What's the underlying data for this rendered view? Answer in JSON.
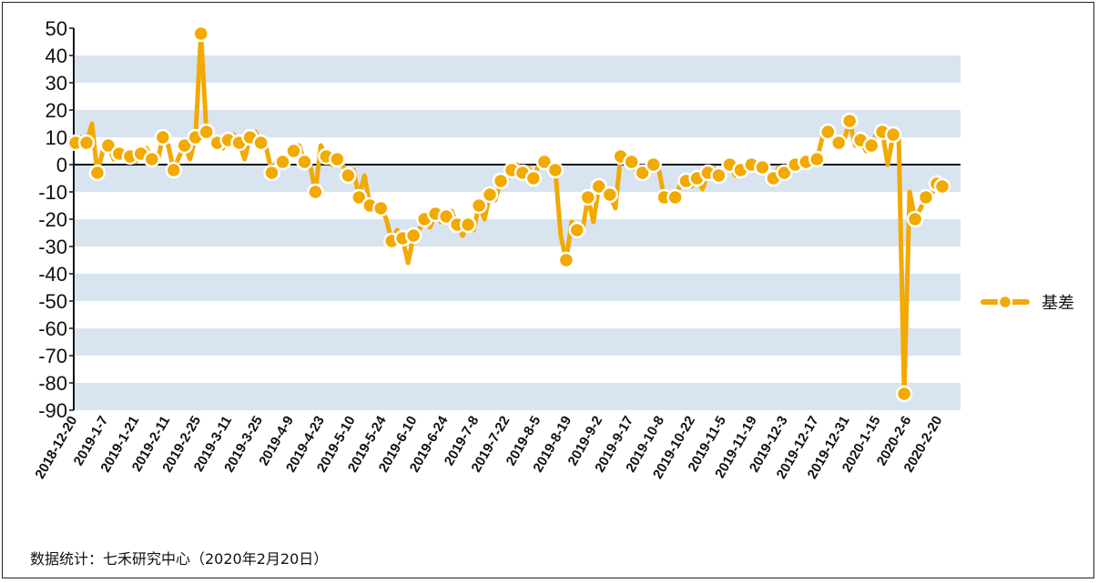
{
  "chart_data": {
    "type": "line",
    "title": "",
    "xlabel": "",
    "ylabel": "",
    "ylim": [
      -90,
      50
    ],
    "yticks": [
      50,
      40,
      30,
      20,
      10,
      0,
      -10,
      -20,
      -30,
      -40,
      -50,
      -60,
      -70,
      -80,
      -90
    ],
    "grid": "alternating horizontal bands",
    "legend_position": "right",
    "series_color": "#f2a900",
    "band_color": "#d9e4f1",
    "x_tick_labels": [
      "2018-12-20",
      "2019-1-7",
      "2019-1-21",
      "2019-2-11",
      "2019-2-25",
      "2019-3-11",
      "2019-3-25",
      "2019-4-9",
      "2019-4-23",
      "2019-5-10",
      "2019-5-24",
      "2019-6-10",
      "2019-6-24",
      "2019-7-8",
      "2019-7-22",
      "2019-8-5",
      "2019-8-19",
      "2019-9-2",
      "2019-9-17",
      "2019-10-8",
      "2019-10-22",
      "2019-11-5",
      "2019-11-19",
      "2019-12-3",
      "2019-12-17",
      "2019-12-31",
      "2020-1-15",
      "2020-2-6",
      "2020-2-20"
    ],
    "series": [
      {
        "name": "基差",
        "values": [
          8,
          10,
          8,
          15,
          -3,
          5,
          7,
          2,
          4,
          5,
          3,
          1,
          4,
          6,
          2,
          1,
          10,
          7,
          -2,
          3,
          7,
          2,
          10,
          48,
          12,
          10,
          8,
          6,
          9,
          11,
          8,
          2,
          10,
          12,
          8,
          6,
          -3,
          2,
          1,
          4,
          5,
          7,
          1,
          0,
          -10,
          7,
          3,
          0,
          2,
          0,
          -4,
          -2,
          -12,
          -4,
          -15,
          -17,
          -16,
          -20,
          -28,
          -24,
          -27,
          -36,
          -26,
          -24,
          -20,
          -23,
          -18,
          -21,
          -19,
          -17,
          -22,
          -26,
          -22,
          -24,
          -15,
          -20,
          -11,
          -13,
          -6,
          -6,
          -2,
          0,
          -3,
          -1,
          -5,
          0,
          1,
          0,
          -2,
          -26,
          -35,
          -21,
          -24,
          -24,
          -12,
          -21,
          -8,
          -10,
          -11,
          -16,
          3,
          2,
          1,
          -3,
          -3,
          -2,
          0,
          -2,
          -12,
          -11,
          -12,
          -7,
          -6,
          -8,
          -5,
          -9,
          -3,
          -1,
          -4,
          -2,
          0,
          -4,
          -2,
          -1,
          0,
          0,
          -1,
          -3,
          -5,
          -1,
          -3,
          -2,
          0,
          -1,
          1,
          0,
          2,
          10,
          12,
          11,
          8,
          9,
          16,
          7,
          9,
          5,
          7,
          12,
          12,
          0,
          11,
          10,
          -84,
          -10,
          -20,
          -16,
          -12,
          -11,
          -7,
          -8
        ]
      }
    ]
  },
  "legend": {
    "label": "基差"
  },
  "source": "数据统计：七禾研究中心（2020年2月20日）"
}
